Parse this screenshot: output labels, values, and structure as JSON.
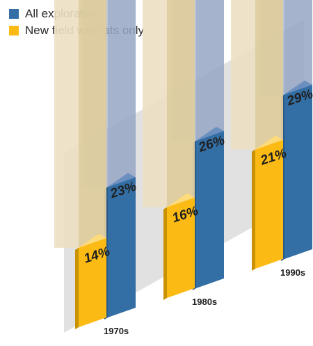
{
  "legend": {
    "items": [
      {
        "label": "All exploration",
        "color": "#336ea4"
      },
      {
        "label": "New field wildcats only",
        "color": "#fcbb14"
      }
    ]
  },
  "chart_data": {
    "type": "bar",
    "style": "3d-isometric",
    "categories": [
      "1970s",
      "1980s",
      "1990s"
    ],
    "series": [
      {
        "name": "All exploration",
        "values": [
          23,
          26,
          29
        ],
        "labels": [
          "23%",
          "26%",
          "29%"
        ],
        "color": "#336ea4"
      },
      {
        "name": "New field wildcats only",
        "values": [
          14,
          16,
          21
        ],
        "labels": [
          "14%",
          "16%",
          "21%"
        ],
        "color": "#fcbb14"
      }
    ],
    "ylim": [
      0,
      100
    ],
    "grid": false,
    "legend_position": "top-left"
  }
}
